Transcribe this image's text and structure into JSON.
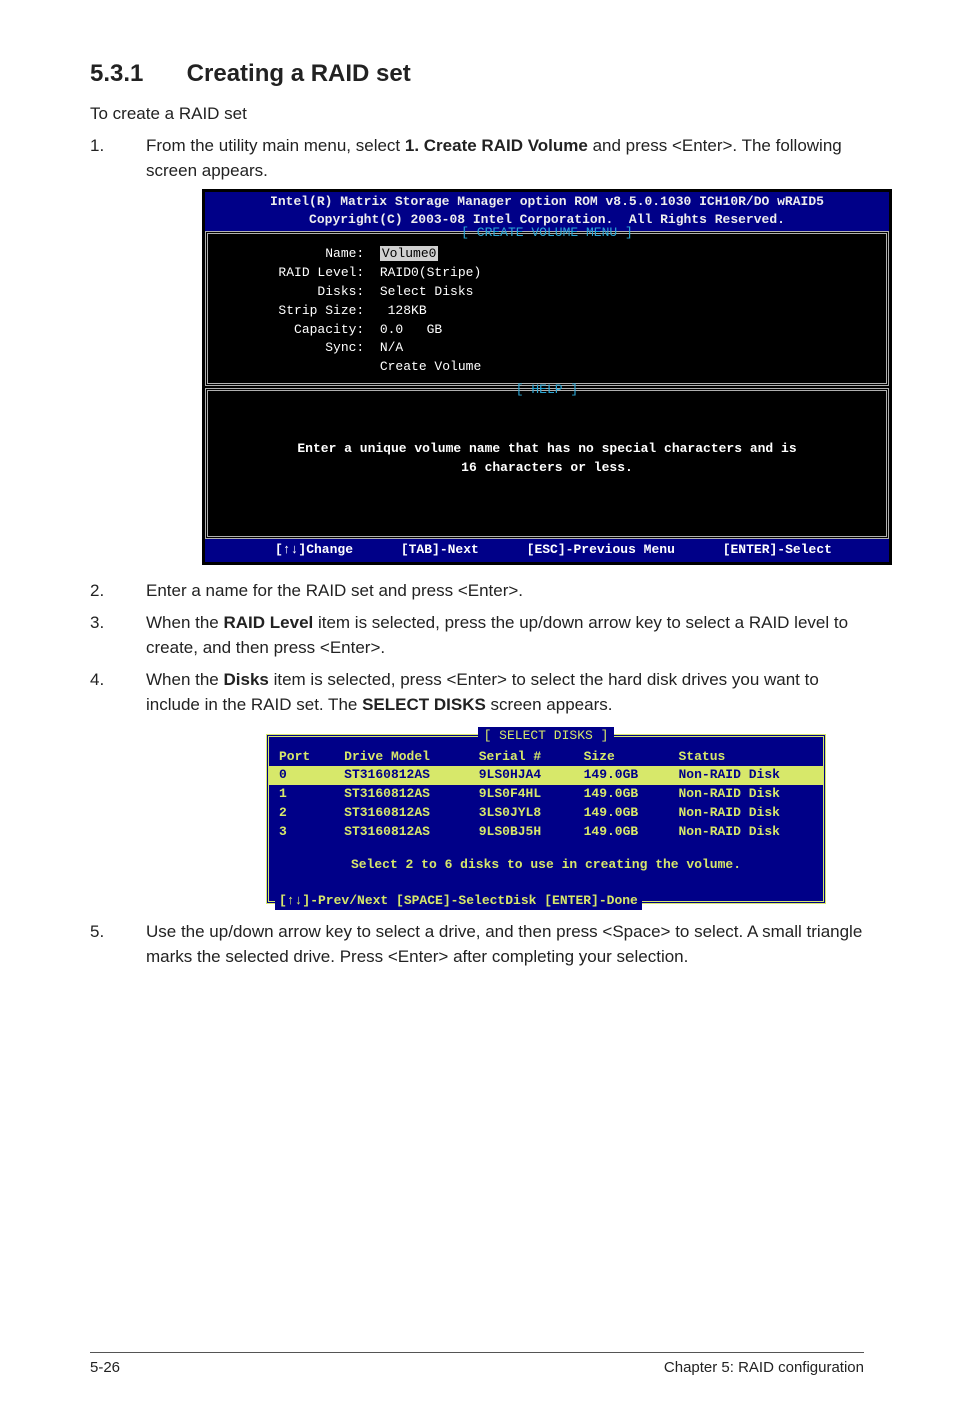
{
  "section": {
    "number": "5.3.1",
    "title": "Creating a RAID set"
  },
  "lead": "To create a RAID set",
  "steps": {
    "s1": {
      "n": "1.",
      "pre": "From the utility main menu, select ",
      "bold": "1. Create RAID Volume",
      "post": " and press <Enter>. The following screen appears."
    },
    "s2": {
      "n": "2.",
      "text": "Enter a name for the RAID set and press <Enter>."
    },
    "s3": {
      "n": "3.",
      "pre": "When the ",
      "bold": "RAID Level",
      "post": " item is selected, press the up/down arrow key to select a RAID level to create, and then press <Enter>."
    },
    "s4": {
      "n": "4.",
      "pre": "When the ",
      "bold": "Disks",
      "mid": " item is selected, press <Enter> to select the hard disk drives you want to include in the RAID set. The ",
      "bold2": "SELECT DISKS",
      "post": " screen appears."
    },
    "s5": {
      "n": "5.",
      "text": "Use the up/down arrow key to select a drive, and then press <Space> to select. A small triangle marks the selected drive. Press <Enter> after completing your selection."
    }
  },
  "bios1": {
    "title_l1": "Intel(R) Matrix Storage Manager option ROM v8.5.0.1030 ICH10R/DO wRAID5",
    "title_l2": "Copyright(C) 2003-08 Intel Corporation.  All Rights Reserved.",
    "panel1_title": "[ CREATE VOLUME MENU ]",
    "fields": {
      "name_k": "              Name:  ",
      "name_v": "Volume0",
      "raid_k": "        RAID Level:  ",
      "raid_v": "RAID0(Stripe)",
      "disks_k": "             Disks:  ",
      "disks_v": "Select Disks",
      "strip_k": "        Strip Size:  ",
      "strip_v": " 128KB",
      "cap_k": "          Capacity:  ",
      "cap_v": "0.0   GB",
      "sync_k": "              Sync:  ",
      "sync_v": "N/A",
      "create": "                     Create Volume"
    },
    "panel2_title": "[ HELP ]",
    "help_l1": "Enter a unique volume name that has no special characters and is",
    "help_l2": "16 characters or less.",
    "foot": {
      "a": "[↑↓]Change",
      "b": "[TAB]-Next",
      "c": "[ESC]-Previous Menu",
      "d": "[ENTER]-Select"
    }
  },
  "bios2": {
    "panel_title": "[ SELECT DISKS ]",
    "head": {
      "c0": "Port",
      "c1": "Drive Model",
      "c2": "Serial #",
      "c3": "Size",
      "c4": "Status"
    },
    "rows": [
      {
        "c0": "0",
        "c1": "ST3160812AS",
        "c2": "9LS0HJA4",
        "c3": "149.0GB",
        "c4": "Non-RAID Disk",
        "sel": true
      },
      {
        "c0": "1",
        "c1": "ST3160812AS",
        "c2": "9LS0F4HL",
        "c3": "149.0GB",
        "c4": "Non-RAID Disk",
        "sel": false
      },
      {
        "c0": "2",
        "c1": "ST3160812AS",
        "c2": "3LS0JYL8",
        "c3": "149.0GB",
        "c4": "Non-RAID Disk",
        "sel": false
      },
      {
        "c0": "3",
        "c1": "ST3160812AS",
        "c2": "9LS0BJ5H",
        "c3": "149.0GB",
        "c4": "Non-RAID Disk",
        "sel": false
      }
    ],
    "note": "Select 2 to 6 disks to use in creating the volume.",
    "foot": "[↑↓]-Prev/Next [SPACE]-SelectDisk [ENTER]-Done"
  },
  "footer": {
    "left": "5-26",
    "right": "Chapter 5: RAID configuration"
  }
}
